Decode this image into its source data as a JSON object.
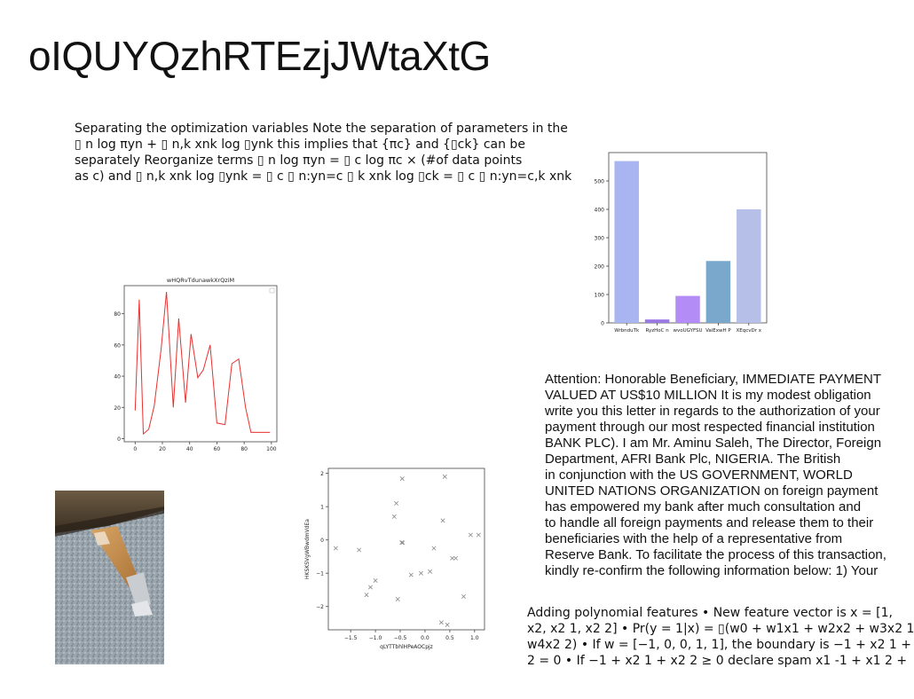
{
  "page": {
    "title": "oIQUYQzhRTEzjJWtaXtG"
  },
  "text_blocks": {
    "optimization": {
      "lines": [
        "Separating the optimization variables Note the separation of parameters in the",
        "▯ n log πyn + ▯ n,k xnk log ▯ynk this implies that {πc} and {▯ck} can be",
        "separately Reorganize terms ▯ n log πyn = ▯ c log πc × (#of data points",
        "as c) and ▯ n,k xnk log ▯ynk = ▯ c ▯ n:yn=c ▯ k xnk log ▯ck = ▯ c ▯ n:yn=c,k xnk"
      ]
    },
    "attention": {
      "lines": [
        "Attention: Honorable Beneficiary, IMMEDIATE PAYMENT",
        "VALUED AT US$10 MILLION It is my modest obligation",
        "write you this letter in regards to the authorization of your",
        "payment through our most respected financial institution",
        "BANK PLC). I am Mr. Aminu Saleh, The Director, Foreign",
        "Department, AFRI Bank Plc, NIGERIA. The British",
        "in conjunction with the US GOVERNMENT, WORLD",
        "UNITED NATIONS ORGANIZATION on foreign payment",
        "has empowered my bank after much consultation and",
        "to handle all foreign payments and release them to their",
        "beneficiaries with the help of a representative from",
        "Reserve Bank. To facilitate the process of this transaction,",
        "kindly re-confirm the following information below: 1) Your"
      ]
    },
    "polynomial": {
      "lines": [
        "Adding polynomial features • New feature vector is x = [1,",
        "x2, x2 1, x2 2] • Pr(y = 1|x) = ▯(w0 + w1x1 + w2x2 + w3x2 1",
        "w4x2 2) • If w = [−1, 0, 0, 1, 1], the boundary is −1 + x2 1 +",
        "2 = 0 • If −1 + x2 1 + x2 2 ≥ 0 declare spam x1 -1 + x1 2 +"
      ]
    }
  },
  "colors": {
    "line_series": "#e8312f",
    "scatter_marker": "#888888",
    "bars": [
      "#a9b5f1",
      "#9a79e6",
      "#b38cf5",
      "#79a8cc",
      "#b5bfe8"
    ]
  },
  "chart_data": [
    {
      "type": "bar",
      "title": "",
      "xlabel": "",
      "ylabel": "",
      "categories": [
        "WrbnduTk",
        "RyzHoC n",
        "wvoUGYFSU",
        "VaiExwH P",
        "XEqcvDr x"
      ],
      "values": [
        570,
        12,
        95,
        218,
        400
      ],
      "ylim": [
        0,
        600
      ],
      "yticks": [
        0,
        100,
        200,
        300,
        400,
        500
      ],
      "grid": false
    },
    {
      "type": "line",
      "title": "wHQRvTdunawkXrQziM",
      "xlabel": "",
      "ylabel": "",
      "series": [
        {
          "x": [
            0,
            3,
            6,
            10,
            14,
            19,
            23,
            28,
            32,
            37,
            41,
            46,
            50,
            55,
            60,
            66,
            71,
            76,
            81,
            85,
            90,
            95,
            99
          ],
          "values": [
            18,
            89,
            3,
            6,
            21,
            57,
            94,
            20,
            77,
            23,
            67,
            39,
            44,
            60,
            10,
            9,
            48,
            51,
            20,
            4,
            4,
            4,
            4
          ]
        }
      ],
      "xlim": [
        -8,
        104
      ],
      "ylim": [
        -2,
        98
      ],
      "xticks": [
        0,
        20,
        40,
        60,
        80,
        100
      ],
      "yticks": [
        0,
        20,
        40,
        60,
        80
      ],
      "grid": false,
      "legend": "top-right"
    },
    {
      "type": "scatter",
      "title": "",
      "xlabel": "qLYTTbhlHPeAOCpjz",
      "ylabel": "HKSKSVgWBwdmVdEa",
      "series": [
        {
          "x": [
            -1.8,
            -1.33,
            -1.18,
            -1.1,
            -1.0,
            -0.62,
            -0.58,
            -0.55,
            -0.46,
            -0.47,
            -0.45,
            -0.28,
            -0.08,
            0.1,
            0.18,
            0.33,
            0.36,
            0.4,
            0.45,
            0.55,
            0.62,
            0.78,
            0.92,
            1.08
          ],
          "values": [
            -0.25,
            -0.3,
            -1.65,
            -1.42,
            -1.22,
            0.7,
            1.1,
            -1.78,
            1.84,
            -0.08,
            -0.08,
            -1.05,
            -1.0,
            -0.95,
            -0.25,
            -2.48,
            0.58,
            1.9,
            -2.55,
            -0.55,
            -0.55,
            -1.7,
            0.15,
            0.15
          ]
        }
      ],
      "xlim": [
        -1.95,
        1.2
      ],
      "ylim": [
        -2.7,
        2.15
      ],
      "xticks": [
        -1.5,
        -1.0,
        -0.5,
        0.0,
        0.5,
        1.0
      ],
      "xtick_labels": [
        "−1.5",
        "−1.0",
        "−0.5",
        "0.0",
        "0.5",
        "1.0"
      ],
      "yticks": [
        -2,
        -1,
        0,
        1,
        2
      ],
      "ytick_labels": [
        "−2",
        "−1",
        "0",
        "1",
        "2"
      ],
      "marker": "x",
      "grid": false
    }
  ]
}
